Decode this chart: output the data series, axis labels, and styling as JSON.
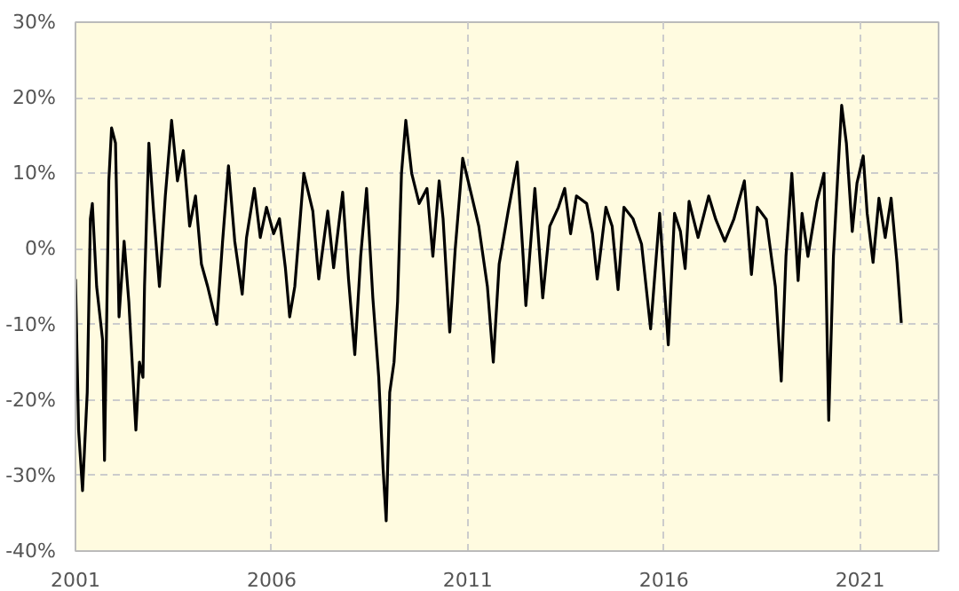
{
  "chart_data": {
    "type": "line",
    "xlim": [
      2001,
      2023
    ],
    "xticks": [
      2001,
      2006,
      2011,
      2016,
      2021
    ],
    "ylim": [
      -40,
      30
    ],
    "yticks": [
      {
        "value": -40,
        "label": "-40%"
      },
      {
        "value": -30,
        "label": "-30%"
      },
      {
        "value": -20,
        "label": "-20%"
      },
      {
        "value": -10,
        "label": "-10%"
      },
      {
        "value": 0,
        "label": "0%"
      },
      {
        "value": 10,
        "label": "10%"
      },
      {
        "value": 20,
        "label": "20%"
      },
      {
        "value": 30,
        "label": "30%"
      }
    ],
    "grid": true,
    "marker": "none",
    "line_style": "solid",
    "series": [
      {
        "color": "#000000",
        "x": [
          2001.0,
          2001.08,
          2001.18,
          2001.3,
          2001.38,
          2001.43,
          2001.54,
          2001.69,
          2001.74,
          2001.85,
          2001.92,
          2002.02,
          2002.11,
          2002.24,
          2002.36,
          2002.54,
          2002.63,
          2002.72,
          2002.76,
          2002.87,
          2002.99,
          2003.14,
          2003.29,
          2003.45,
          2003.6,
          2003.75,
          2003.91,
          2004.06,
          2004.21,
          2004.37,
          2004.6,
          2004.75,
          2004.9,
          2005.06,
          2005.25,
          2005.36,
          2005.56,
          2005.71,
          2005.87,
          2006.05,
          2006.2,
          2006.35,
          2006.46,
          2006.59,
          2006.82,
          2007.05,
          2007.2,
          2007.43,
          2007.58,
          2007.81,
          2007.96,
          2008.12,
          2008.27,
          2008.42,
          2008.58,
          2008.73,
          2008.84,
          2008.92,
          2009.01,
          2009.12,
          2009.21,
          2009.31,
          2009.42,
          2009.57,
          2009.76,
          2009.96,
          2010.11,
          2010.27,
          2010.37,
          2010.54,
          2010.68,
          2010.87,
          2011.1,
          2011.28,
          2011.5,
          2011.65,
          2011.8,
          2012.03,
          2012.26,
          2012.41,
          2012.48,
          2012.71,
          2012.91,
          2013.09,
          2013.31,
          2013.47,
          2013.62,
          2013.77,
          2014.03,
          2014.18,
          2014.3,
          2014.52,
          2014.68,
          2014.83,
          2014.98,
          2015.21,
          2015.43,
          2015.66,
          2015.89,
          2016.11,
          2016.27,
          2016.42,
          2016.54,
          2016.64,
          2016.87,
          2017.14,
          2017.32,
          2017.55,
          2017.78,
          2018.05,
          2018.23,
          2018.38,
          2018.61,
          2018.84,
          2018.99,
          2019.11,
          2019.26,
          2019.42,
          2019.52,
          2019.67,
          2019.9,
          2020.08,
          2020.2,
          2020.32,
          2020.47,
          2020.53,
          2020.65,
          2020.8,
          2020.92,
          2021.08,
          2021.18,
          2021.33,
          2021.48,
          2021.64,
          2021.79,
          2021.94,
          2022.05
        ],
        "values": [
          -4,
          -24,
          -32,
          -19,
          4,
          6,
          -5,
          -12,
          -28,
          9,
          16,
          14,
          -9,
          1,
          -7,
          -24,
          -15,
          -17,
          -5,
          14,
          5,
          -5,
          7,
          17,
          9,
          13,
          3,
          7,
          -2,
          -5,
          -10,
          1,
          11,
          1,
          -6,
          1.5,
          8,
          1.5,
          5.5,
          2,
          4,
          -2.5,
          -9,
          -5,
          10,
          5,
          -4,
          5,
          -2.5,
          7.5,
          -4,
          -14,
          -1,
          8,
          -6.5,
          -17,
          -29,
          -36,
          -19,
          -15,
          -7,
          10,
          17,
          10,
          6,
          8,
          -1,
          9,
          4,
          -11,
          0,
          12,
          7,
          3,
          -5,
          -15,
          -2,
          5,
          11.5,
          -1,
          -7.5,
          8,
          -6.5,
          3,
          5.5,
          8,
          2,
          7,
          6,
          2,
          -4,
          5.5,
          3,
          -5.4,
          5.5,
          4,
          0.6,
          -10.6,
          4.7,
          -12.7,
          4.7,
          2.3,
          -2.6,
          6.3,
          1.5,
          7,
          3.9,
          1,
          3.9,
          9,
          -3.4,
          5.5,
          3.9,
          -5,
          -17.5,
          -1,
          10,
          -4.2,
          4.7,
          -1,
          6.3,
          10,
          -22.7,
          -1,
          13.5,
          19,
          14,
          2.3,
          8.7,
          12.3,
          4.7,
          -1.8,
          6.7,
          1.5,
          6.7,
          -1.8,
          -9.8
        ]
      }
    ]
  }
}
